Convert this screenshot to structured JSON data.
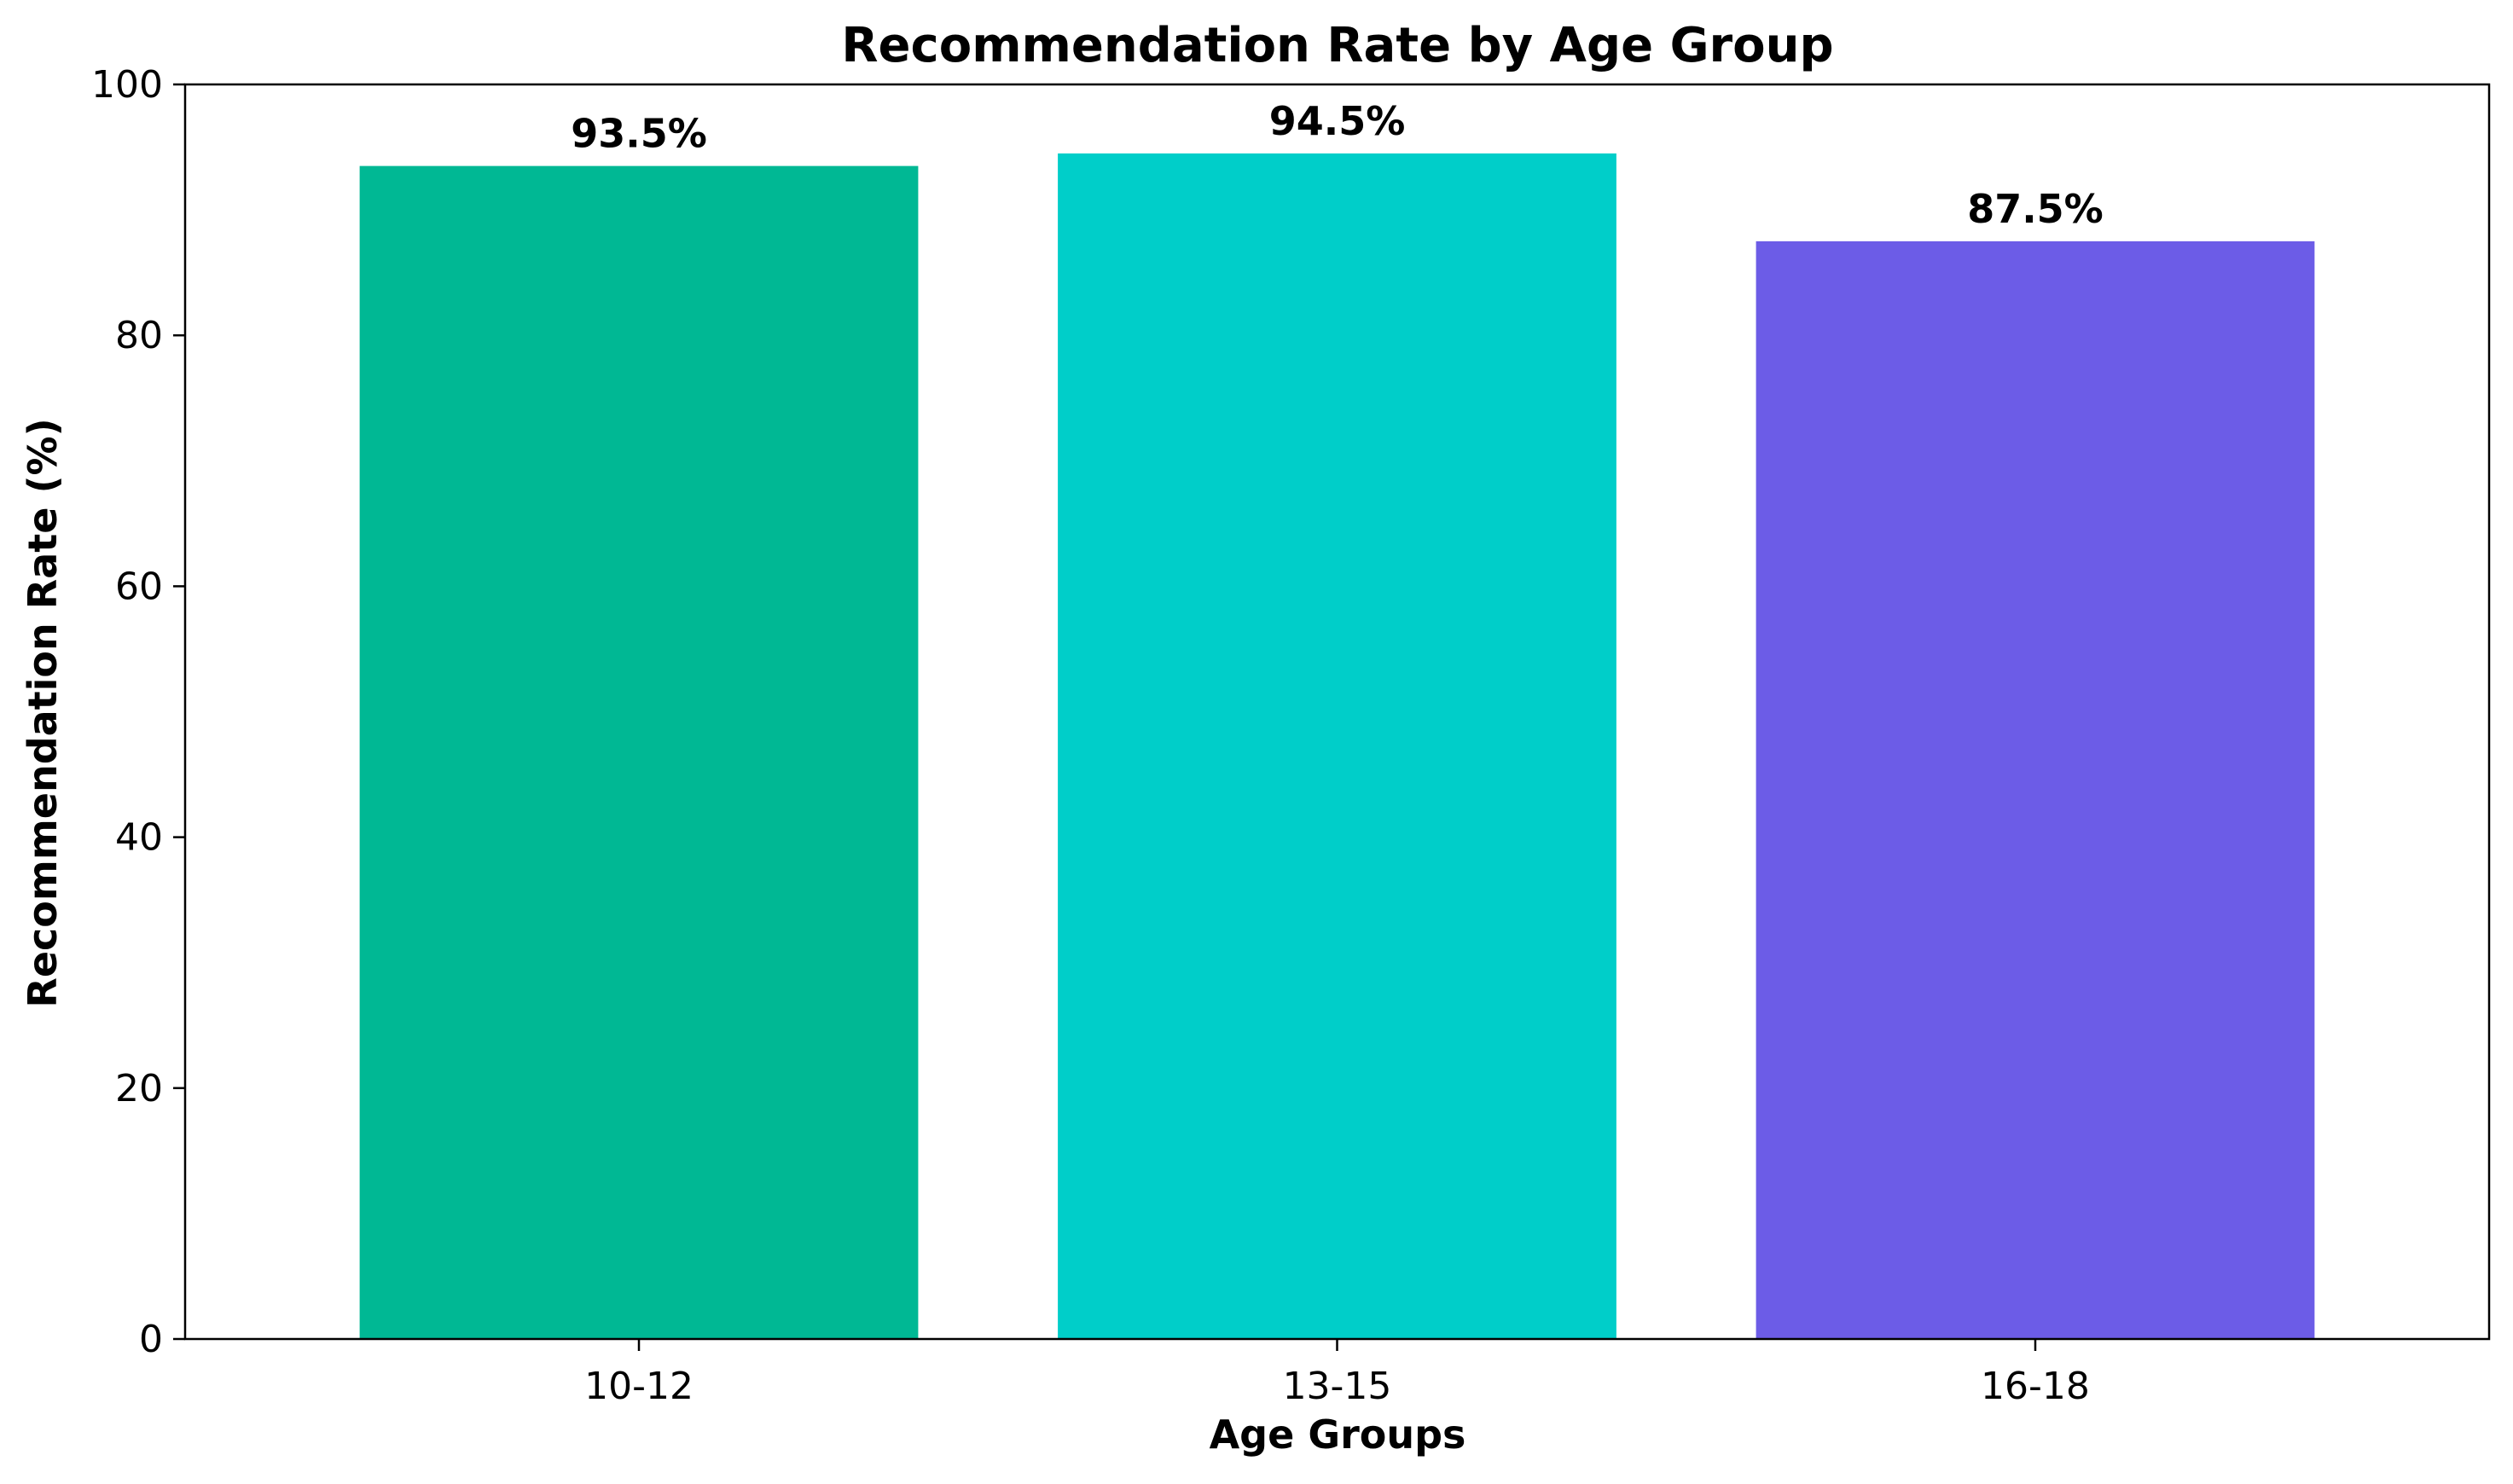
{
  "chart_data": {
    "type": "bar",
    "title": "Recommendation Rate by Age Group",
    "xlabel": "Age Groups",
    "ylabel": "Recommendation Rate (%)",
    "categories": [
      "10-12",
      "13-15",
      "16-18"
    ],
    "values": [
      93.5,
      94.5,
      87.5
    ],
    "value_labels": [
      "93.5%",
      "94.5%",
      "87.5%"
    ],
    "colors": [
      "#00b894",
      "#00cec9",
      "#6c5ce7"
    ],
    "ylim": [
      0,
      100
    ],
    "yticks": [
      0,
      20,
      40,
      60,
      80,
      100
    ],
    "grid": false,
    "legend": "none"
  }
}
